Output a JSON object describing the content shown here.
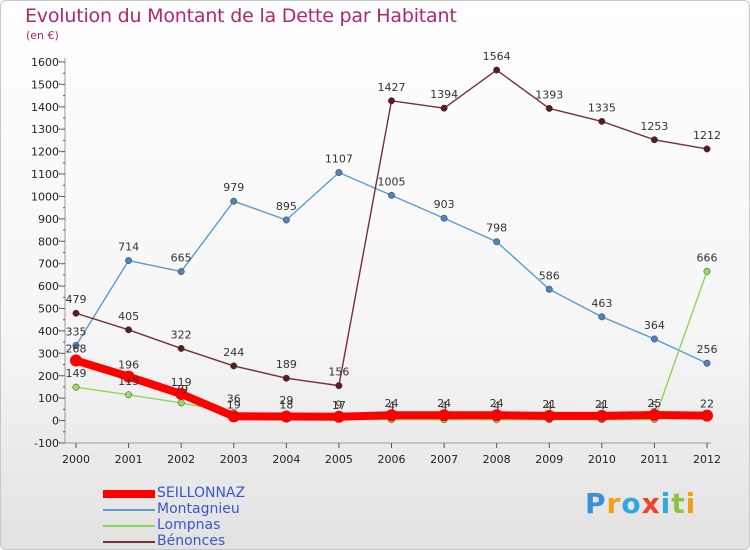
{
  "title": "Evolution du Montant de la Dette par Habitant",
  "unit_label": "(en €)",
  "logo_text": "Proxiti",
  "chart_data": {
    "type": "line",
    "title": "Evolution du Montant de la Dette par Habitant",
    "ylabel": "(en €)",
    "x": [
      "2000",
      "2001",
      "2002",
      "2003",
      "2004",
      "2005",
      "2006",
      "2007",
      "2008",
      "2009",
      "2010",
      "2011",
      "2012"
    ],
    "ylim": [
      -100,
      1600
    ],
    "yticks": [
      "-100",
      "0",
      "100",
      "200",
      "300",
      "400",
      "500",
      "600",
      "700",
      "800",
      "900",
      "1000",
      "1100",
      "1200",
      "1300",
      "1400",
      "1500",
      "1600"
    ],
    "grid": false,
    "legend_position": "bottom-left",
    "series": [
      {
        "name": "SEILLONNAZ",
        "color": "#ff0000",
        "marker": "#ff0000",
        "values": [
          268,
          196,
          119,
          19,
          18,
          17,
          24,
          24,
          24,
          21,
          21,
          25,
          22
        ],
        "labels": [
          "268",
          "196",
          "119",
          "19",
          "18",
          "17",
          "24",
          "24",
          "24",
          "21",
          "21",
          "25",
          "22"
        ]
      },
      {
        "name": "Montagnieu",
        "color": "#5a9bd5",
        "marker": "#4a85c0",
        "values": [
          335,
          714,
          665,
          979,
          895,
          1107,
          1005,
          903,
          798,
          586,
          463,
          364,
          256
        ],
        "labels": [
          "335",
          "714",
          "665",
          "979",
          "895",
          "1107",
          "1005",
          "903",
          "798",
          "586",
          "463",
          "364",
          "256"
        ]
      },
      {
        "name": "Lompnas",
        "color": "#8cd65a",
        "marker": "#9adc5c",
        "values": [
          149,
          115,
          79,
          36,
          29,
          9,
          4,
          4,
          4,
          4,
          4,
          5,
          666
        ],
        "labels": [
          "149",
          "115",
          "79",
          "36",
          "29",
          "9",
          "4",
          "4",
          "4",
          "4",
          "4",
          "5",
          "666"
        ]
      },
      {
        "name": "Bénonces",
        "color": "#7a2e36",
        "marker": "#5e1a20",
        "values": [
          479,
          405,
          322,
          244,
          189,
          156,
          1427,
          1394,
          1564,
          1393,
          1335,
          1253,
          1212
        ],
        "labels": [
          "479",
          "405",
          "322",
          "244",
          "189",
          "156",
          "1427",
          "1394",
          "1564",
          "1393",
          "1335",
          "1253",
          "1212"
        ]
      }
    ]
  }
}
